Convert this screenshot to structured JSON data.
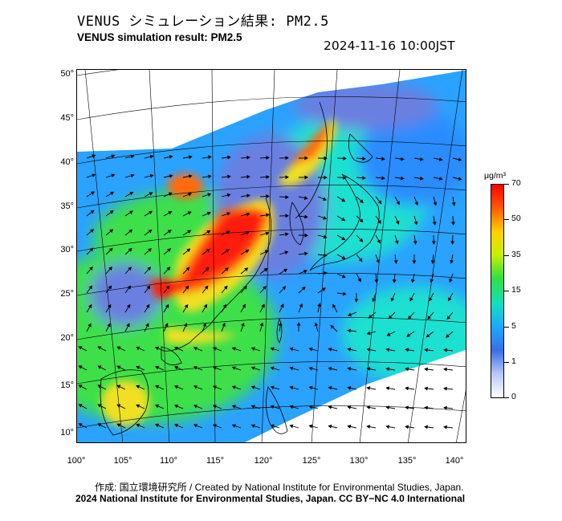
{
  "header": {
    "title_jp": "VENUS シミュレーション結果: PM2.5",
    "title_en": "VENUS simulation result: PM2.5",
    "timestamp": "2024-11-16 10:00JST"
  },
  "map": {
    "lat_labels": [
      "50°",
      "45°",
      "40°",
      "35°",
      "30°",
      "25°",
      "20°",
      "15°",
      "10°"
    ],
    "lon_labels": [
      "100°",
      "105°",
      "110°",
      "115°",
      "120°",
      "125°",
      "130°",
      "135°",
      "140°"
    ],
    "lat_range": [
      9,
      51
    ],
    "lon_range": [
      100,
      142
    ],
    "palette": {
      "very_low": "#6a7fe0",
      "low": "#2aa2ff",
      "mid": "#1fe0d0",
      "moderate": "#3ee04a",
      "high": "#f0e020",
      "very_high": "#ff6a10",
      "extreme": "#ff1a0a"
    }
  },
  "colorbar": {
    "unit": "μg/m³",
    "ticks": [
      "70",
      "50",
      "35",
      "15",
      "5",
      "1",
      "0"
    ],
    "stops": [
      "#ff0000",
      "#ff5a00",
      "#ffd000",
      "#c8f000",
      "#30e040",
      "#10e0c0",
      "#1aa8ff",
      "#3a6ee8",
      "#b8c8f8",
      "#ffffff"
    ]
  },
  "credits": {
    "line1": "作成: 国立環境研究所 / Created by National Institute for Environmental Studies, Japan.",
    "line2": "2024 National Institute for Environmental Studies, Japan. CC BY−NC 4.0 International"
  }
}
